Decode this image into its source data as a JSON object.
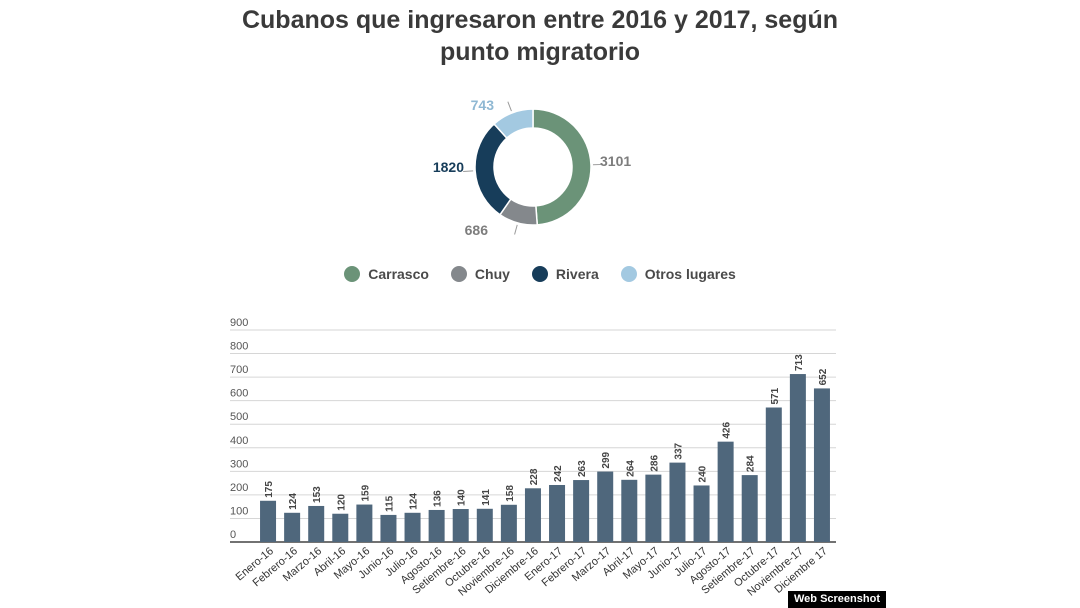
{
  "chart_data": [
    {
      "type": "pie",
      "title_line1": "Cubanos que ingresaron entre 2016 y 2017, según",
      "title_line2": "punto migratorio",
      "slices": [
        {
          "label": "Carrasco",
          "value": 3101,
          "color": "#6b9378"
        },
        {
          "label": "Chuy",
          "value": 686,
          "color": "#84888c"
        },
        {
          "label": "Rivera",
          "value": 1820,
          "color": "#173d5a"
        },
        {
          "label": "Otros lugares",
          "value": 743,
          "color": "#a3c9e1"
        }
      ]
    },
    {
      "type": "bar",
      "categories": [
        "Enero-16",
        "Febrero-16",
        "Marzo-16",
        "Abril-16",
        "Mayo-16",
        "Junio-16",
        "Julio-16",
        "Agosto-16",
        "Setiembre-16",
        "Octubre-16",
        "Noviembre-16",
        "Diciembre-16",
        "Enero-17",
        "Febrero-17",
        "Marzo-17",
        "Abril-17",
        "Mayo-17",
        "Junio-17",
        "Julio-17",
        "Agosto-17",
        "Setiembre-17",
        "Octubre-17",
        "Noviembre-17",
        "Diciembre 17"
      ],
      "values": [
        175,
        124,
        153,
        120,
        159,
        115,
        124,
        136,
        140,
        141,
        158,
        228,
        242,
        263,
        299,
        264,
        286,
        337,
        240,
        426,
        284,
        571,
        713,
        652
      ],
      "ylim": [
        0,
        900
      ],
      "yticks": [
        "0",
        "100",
        "200",
        "300",
        "400",
        "500",
        "600",
        "700",
        "800",
        "900"
      ],
      "bar_color": "#4f677c"
    }
  ],
  "badge": "Web Screenshot"
}
